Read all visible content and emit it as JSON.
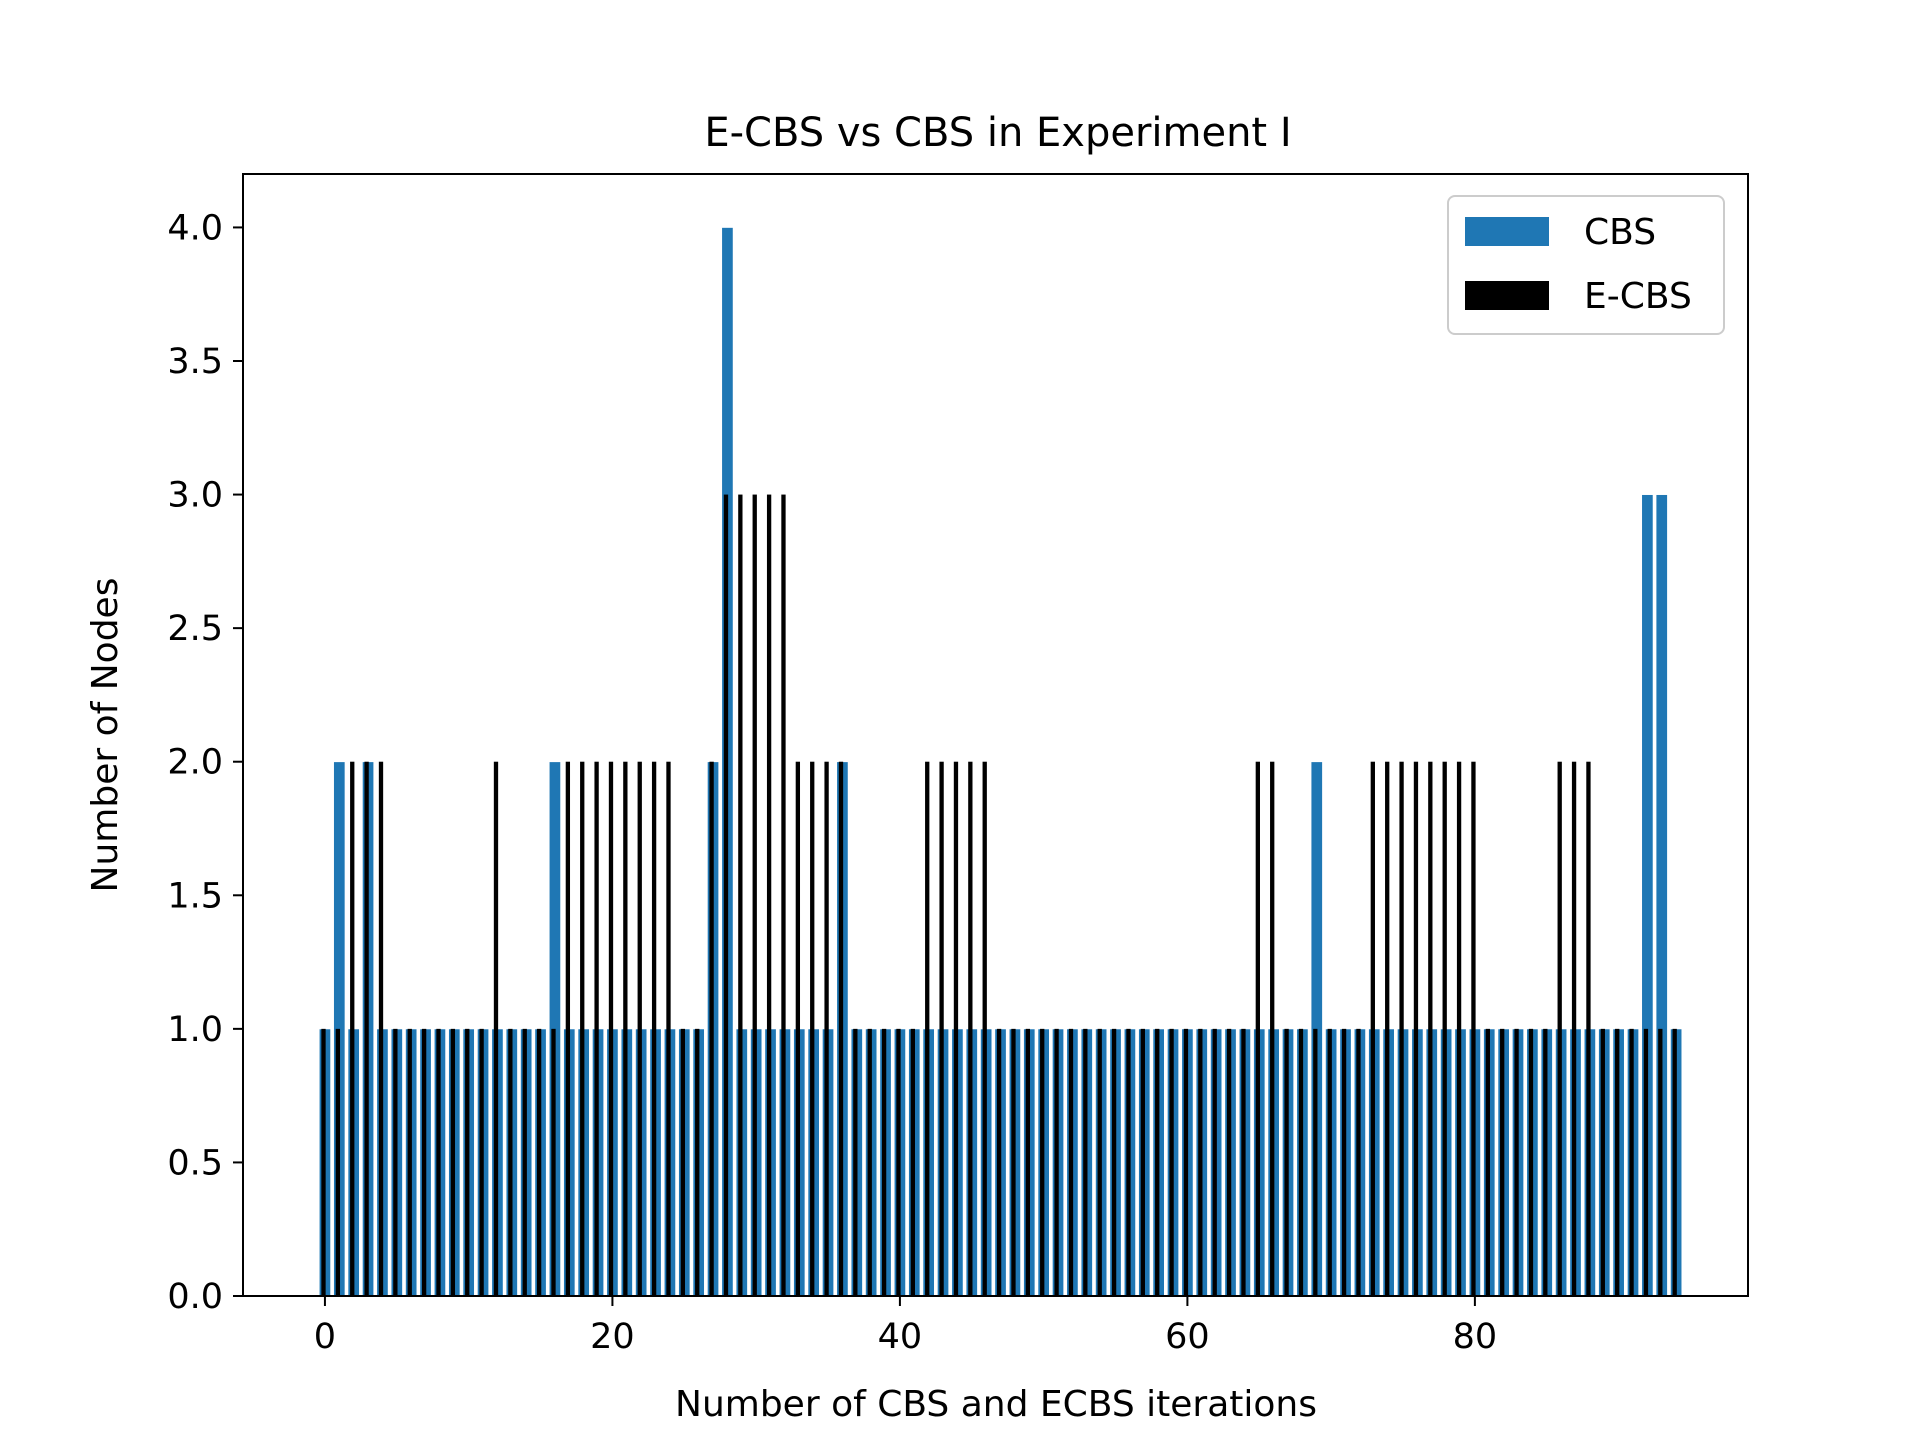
{
  "chart_data": {
    "type": "bar",
    "title": "E-CBS vs CBS in Experiment I",
    "xlabel": "Number of CBS and ECBS iterations",
    "ylabel": "Number of Nodes",
    "xlim": [
      -5.7,
      99
    ],
    "ylim": [
      0,
      4.2
    ],
    "xticks": [
      0,
      20,
      40,
      60,
      80
    ],
    "xtick_labels": [
      "0",
      "20",
      "40",
      "60",
      "80"
    ],
    "yticks": [
      0,
      0.5,
      1,
      1.5,
      2,
      2.5,
      3,
      3.5,
      4
    ],
    "ytick_labels": [
      "0.0",
      "0.5",
      "1.0",
      "1.5",
      "2.0",
      "2.5",
      "3.0",
      "3.5",
      "4.0"
    ],
    "grid": false,
    "legend_position": "top-right",
    "series": [
      {
        "name": "CBS",
        "color": "#1f77b4",
        "bar_width": 0.8,
        "x": [
          0,
          1,
          2,
          3,
          4,
          5,
          6,
          7,
          8,
          9,
          10,
          11,
          12,
          13,
          14,
          15,
          16,
          17,
          18,
          19,
          20,
          21,
          22,
          23,
          24,
          25,
          26,
          27,
          28,
          29,
          30,
          31,
          32,
          33,
          34,
          35,
          36,
          37,
          38,
          39,
          40,
          41,
          42,
          43,
          44,
          45,
          46,
          47,
          48,
          49,
          50,
          51,
          52,
          53,
          54,
          55,
          56,
          57,
          58,
          59,
          60,
          61,
          62,
          63,
          64,
          65,
          66,
          67,
          68,
          69,
          70,
          71,
          72,
          73,
          74,
          75,
          76,
          77,
          78,
          79,
          80,
          81,
          82,
          83,
          84,
          85,
          86,
          87,
          88,
          89,
          90,
          91,
          92,
          93,
          94
        ],
        "values": [
          1,
          2,
          1,
          2,
          1,
          1,
          1,
          1,
          1,
          1,
          1,
          1,
          1,
          1,
          1,
          1,
          2,
          1,
          1,
          1,
          1,
          1,
          1,
          1,
          1,
          1,
          1,
          2,
          4,
          1,
          1,
          1,
          1,
          1,
          1,
          1,
          2,
          1,
          1,
          1,
          1,
          1,
          1,
          1,
          1,
          1,
          1,
          1,
          1,
          1,
          1,
          1,
          1,
          1,
          1,
          1,
          1,
          1,
          1,
          1,
          1,
          1,
          1,
          1,
          1,
          1,
          1,
          1,
          1,
          2,
          1,
          1,
          1,
          1,
          1,
          1,
          1,
          1,
          1,
          1,
          1,
          1,
          1,
          1,
          1,
          1,
          1,
          1,
          1,
          1,
          1,
          1,
          3,
          3,
          1
        ]
      },
      {
        "name": "E-CBS",
        "color": "#000000",
        "bar_width": 0.3,
        "x": [
          -0.1,
          0.9,
          1.9,
          2.9,
          3.9,
          4.9,
          5.9,
          6.9,
          7.9,
          8.9,
          9.9,
          10.9,
          11.9,
          12.9,
          13.9,
          14.9,
          15.9,
          16.9,
          17.9,
          18.9,
          19.9,
          20.9,
          21.9,
          22.9,
          23.9,
          24.9,
          25.9,
          26.9,
          27.9,
          28.9,
          29.9,
          30.9,
          31.9,
          32.9,
          33.9,
          34.9,
          35.9,
          36.9,
          37.9,
          38.9,
          39.9,
          40.9,
          41.9,
          42.9,
          43.9,
          44.9,
          45.9,
          46.9,
          47.9,
          48.9,
          49.9,
          50.9,
          51.9,
          52.9,
          53.9,
          54.9,
          55.9,
          56.9,
          57.9,
          58.9,
          59.9,
          60.9,
          61.9,
          62.9,
          63.9,
          64.9,
          65.9,
          66.9,
          67.9,
          68.9,
          69.9,
          70.9,
          71.9,
          72.9,
          73.9,
          74.9,
          75.9,
          76.9,
          77.9,
          78.9,
          79.9,
          80.9,
          81.9,
          82.9,
          83.9,
          84.9,
          85.9,
          86.9,
          87.9,
          88.9,
          89.9,
          90.9,
          91.9,
          92.9,
          93.9
        ],
        "values": [
          1,
          1,
          2,
          2,
          2,
          1,
          1,
          1,
          1,
          1,
          1,
          1,
          2,
          1,
          1,
          1,
          1,
          2,
          2,
          2,
          2,
          2,
          2,
          2,
          2,
          1,
          1,
          2,
          3,
          3,
          3,
          3,
          3,
          2,
          2,
          2,
          2,
          1,
          1,
          1,
          1,
          1,
          2,
          2,
          2,
          2,
          2,
          1,
          1,
          1,
          1,
          1,
          1,
          1,
          1,
          1,
          1,
          1,
          1,
          1,
          1,
          1,
          1,
          1,
          1,
          2,
          2,
          1,
          1,
          1,
          1,
          1,
          1,
          2,
          2,
          2,
          2,
          2,
          2,
          2,
          2,
          1,
          1,
          1,
          1,
          1,
          2,
          2,
          2,
          1,
          1,
          1,
          1,
          1,
          1
        ]
      }
    ]
  }
}
